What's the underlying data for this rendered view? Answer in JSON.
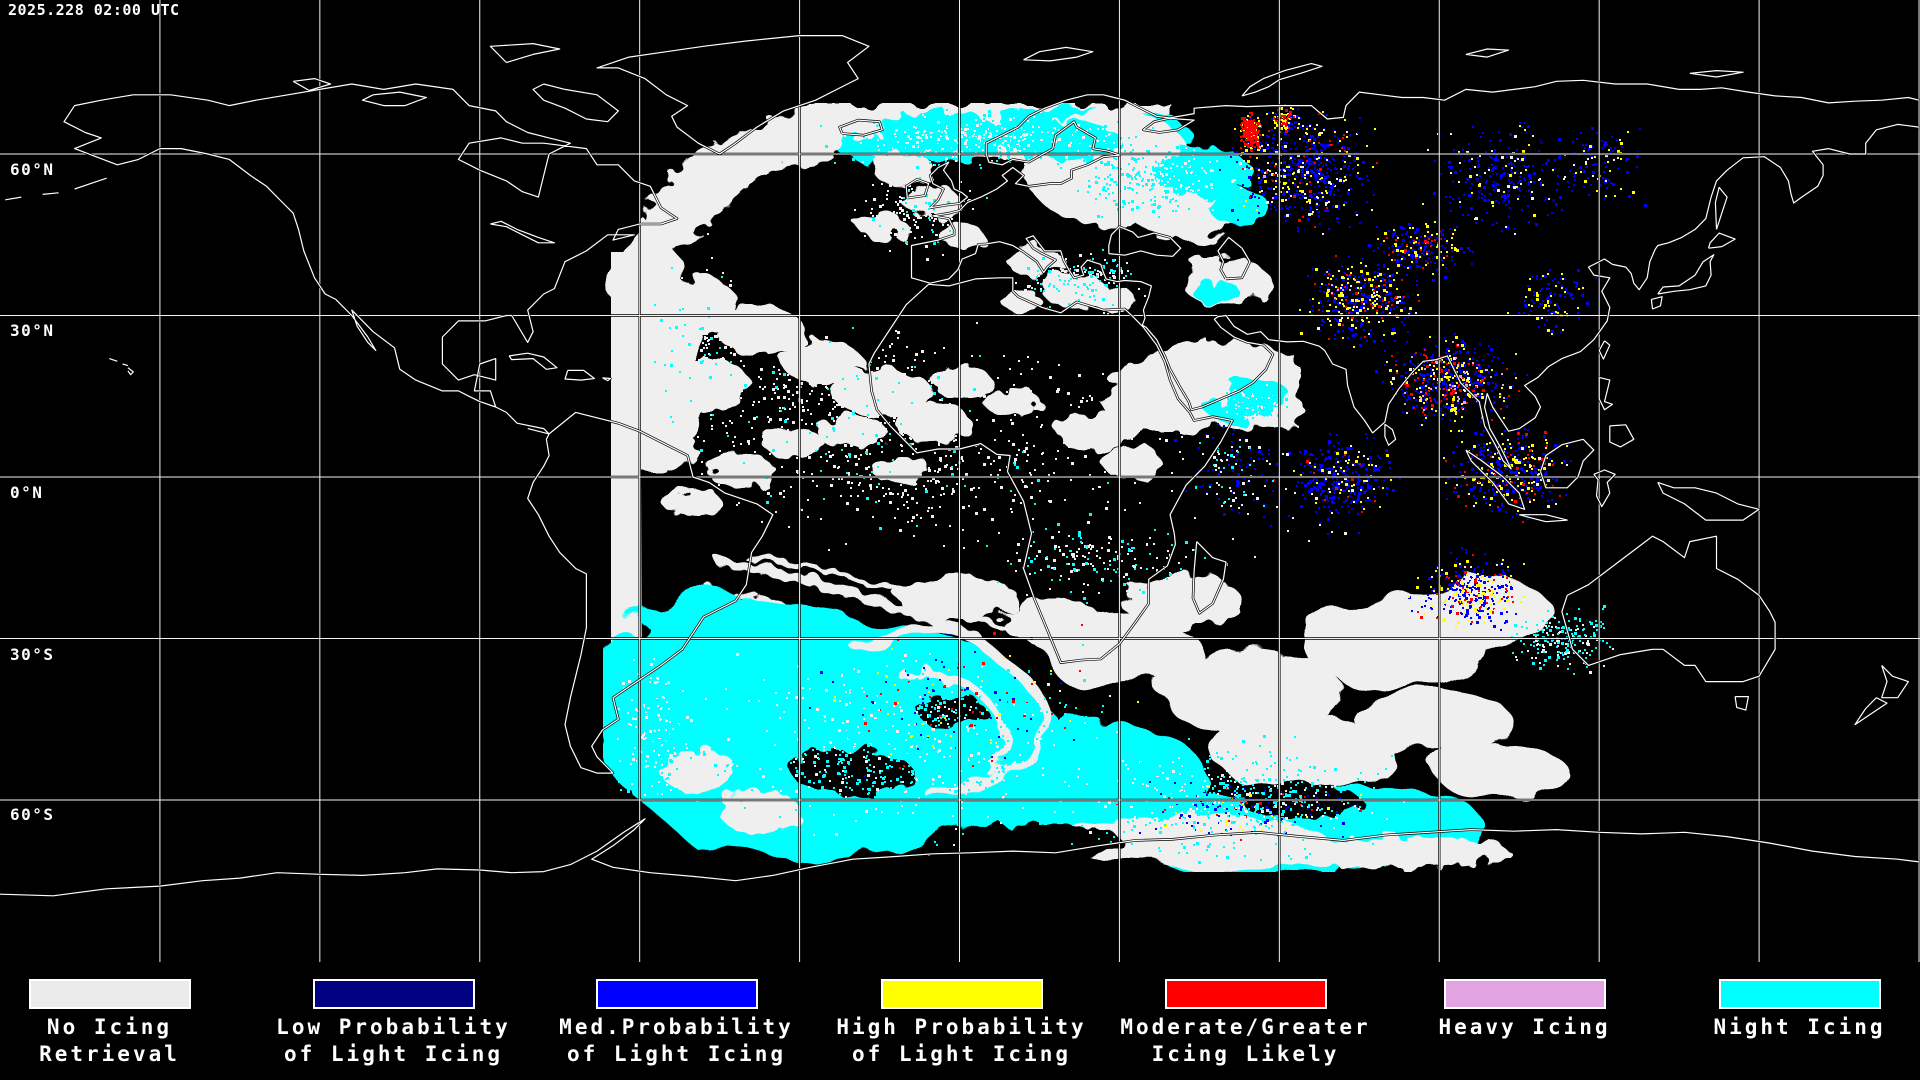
{
  "timestamp": "2025.228 02:00 UTC",
  "latitude_labels": [
    "60°N",
    "30°N",
    "0°N",
    "30°S",
    "60°S"
  ],
  "map": {
    "background": "#000000",
    "coastline_color": "#ffffff",
    "coastline_shadow": "#000000",
    "grid_color": "#ffffff"
  },
  "legend": {
    "items": [
      {
        "line1": "No Icing",
        "line2": "Retrieval",
        "color": "#ebebeb"
      },
      {
        "line1": "Low Probability",
        "line2": "of Light Icing",
        "color": "#000080"
      },
      {
        "line1": "Med.Probability",
        "line2": "of Light Icing",
        "color": "#0000ff"
      },
      {
        "line1": "High Probability",
        "line2": "of Light Icing",
        "color": "#ffff00"
      },
      {
        "line1": "Moderate/Greater",
        "line2": "Icing Likely",
        "color": "#fe0000"
      },
      {
        "line1": "Heavy Icing",
        "line2": "",
        "color": "#e2a3e2"
      },
      {
        "line1": "Night Icing",
        "line2": "",
        "color": "#00ffff"
      }
    ]
  }
}
